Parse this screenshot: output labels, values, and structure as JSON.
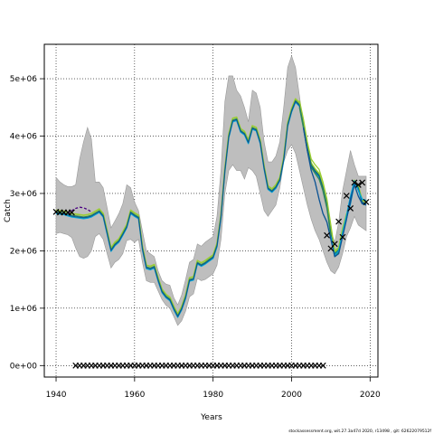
{
  "chart_data": {
    "type": "line",
    "xlabel": "Years",
    "ylabel": "Catch",
    "xlim": [
      1937,
      2022
    ],
    "ylim": [
      -200000,
      5600000
    ],
    "x_ticks": [
      1940,
      1960,
      1980,
      2000,
      2020
    ],
    "y_ticks": [
      0,
      1000000,
      2000000,
      3000000,
      4000000,
      5000000
    ],
    "y_tick_labels": [
      "0e+00",
      "1e+06",
      "2e+06",
      "3e+06",
      "4e+06",
      "5e+06"
    ],
    "grid": true,
    "grid_style": "dotted",
    "footer": "stockassessment.org, wit.27.3a47d   2020, r13498 , git: 62622079512f",
    "colors": {
      "band": "#bebebe",
      "band_edge": "#9a9a9a",
      "main": "#0b5394",
      "alt1": "#2e8b57",
      "alt2": "#9acd32",
      "alt3": "#00a6d6",
      "observed": "#000000",
      "retro_dashed": "#4b0082"
    },
    "years": [
      1940,
      1941,
      1942,
      1943,
      1944,
      1945,
      1946,
      1947,
      1948,
      1949,
      1950,
      1951,
      1952,
      1953,
      1954,
      1955,
      1956,
      1957,
      1958,
      1959,
      1960,
      1961,
      1962,
      1963,
      1964,
      1965,
      1966,
      1967,
      1968,
      1969,
      1970,
      1971,
      1972,
      1973,
      1974,
      1975,
      1976,
      1977,
      1978,
      1979,
      1980,
      1981,
      1982,
      1983,
      1984,
      1985,
      1986,
      1987,
      1988,
      1989,
      1990,
      1991,
      1992,
      1993,
      1994,
      1995,
      1996,
      1997,
      1998,
      1999,
      2000,
      2001,
      2002,
      2003,
      2004,
      2005,
      2006,
      2007,
      2008,
      2009,
      2010,
      2011,
      2012,
      2013,
      2014,
      2015,
      2016,
      2017,
      2018,
      2019
    ],
    "estimate": [
      2680000,
      2670000,
      2660000,
      2640000,
      2620000,
      2610000,
      2600000,
      2590000,
      2600000,
      2620000,
      2660000,
      2700000,
      2620000,
      2320000,
      2020000,
      2120000,
      2180000,
      2300000,
      2430000,
      2680000,
      2630000,
      2590000,
      2050000,
      1720000,
      1700000,
      1730000,
      1500000,
      1300000,
      1210000,
      1160000,
      1000000,
      870000,
      1000000,
      1200000,
      1500000,
      1520000,
      1800000,
      1760000,
      1800000,
      1850000,
      1900000,
      2100000,
      2600000,
      3400000,
      4000000,
      4280000,
      4300000,
      4100000,
      4050000,
      3900000,
      4150000,
      4120000,
      3900000,
      3450000,
      3100000,
      3050000,
      3120000,
      3250000,
      3600000,
      4200000,
      4450000,
      4620000,
      4550000,
      4200000,
      3800000,
      3500000,
      3400000,
      3320000,
      3100000,
      2800000,
      2300000,
      1950000,
      2020000,
      2350000,
      2600000,
      2850000,
      3200000,
      3100000,
      2850000,
      2830000
    ],
    "band_upper": [
      3280000,
      3200000,
      3150000,
      3120000,
      3120000,
      3150000,
      3600000,
      3900000,
      4150000,
      3950000,
      3200000,
      3200000,
      3100000,
      2750000,
      2400000,
      2520000,
      2650000,
      2820000,
      3150000,
      3100000,
      2850000,
      2700000,
      2350000,
      2000000,
      1950000,
      1900000,
      1650000,
      1480000,
      1420000,
      1400000,
      1180000,
      1060000,
      1230000,
      1500000,
      1800000,
      1850000,
      2120000,
      2080000,
      2150000,
      2200000,
      2250000,
      2600000,
      3400000,
      4600000,
      5050000,
      5050000,
      4800000,
      4700000,
      4500000,
      4250000,
      4800000,
      4750000,
      4500000,
      3900000,
      3550000,
      3550000,
      3650000,
      3900000,
      4500000,
      5200000,
      5400000,
      5200000,
      4700000,
      4200000,
      3800000,
      3500000,
      3400000,
      3300000,
      3000000,
      2700000,
      2350000,
      2150000,
      2500000,
      3050000,
      3400000,
      3750000,
      3500000,
      3300000,
      3300000,
      3300000
    ],
    "band_lower": [
      2300000,
      2320000,
      2300000,
      2280000,
      2230000,
      2050000,
      1900000,
      1870000,
      1900000,
      2000000,
      2250000,
      2300000,
      2200000,
      1950000,
      1700000,
      1800000,
      1850000,
      1950000,
      2180000,
      2200000,
      2150000,
      2200000,
      1800000,
      1480000,
      1450000,
      1450000,
      1300000,
      1150000,
      1050000,
      1000000,
      850000,
      700000,
      780000,
      950000,
      1200000,
      1250000,
      1520000,
      1480000,
      1500000,
      1550000,
      1600000,
      1750000,
      2200000,
      3000000,
      3400000,
      3500000,
      3400000,
      3400000,
      3250000,
      3450000,
      3400000,
      3300000,
      3000000,
      2700000,
      2600000,
      2700000,
      2800000,
      3100000,
      3550000,
      3750000,
      3850000,
      3700000,
      3400000,
      3100000,
      2800000,
      2550000,
      2350000,
      2200000,
      2000000,
      1800000,
      1650000,
      1600000,
      1720000,
      1950000,
      2250000,
      2400000,
      2600000,
      2450000,
      2400000,
      2350000
    ],
    "retro_lines": [
      {
        "color": "#2e8b57",
        "offset_start": 2002,
        "values": [
          4500000,
          4150000,
          3750000,
          3450000,
          3350000,
          3250000,
          3050000,
          2750000,
          2250000,
          1900000,
          1980000,
          2300000,
          2580000
        ]
      },
      {
        "color": "#9acd32",
        "offset_start": 2002,
        "values": [
          4620000,
          4300000,
          3900000,
          3600000,
          3500000,
          3420000,
          3200000,
          2900000,
          2450000,
          2000000,
          2060000,
          2380000,
          2650000
        ]
      },
      {
        "color": "#00a6d6",
        "offset_start": 2010,
        "values": [
          2250000,
          1920000,
          2000000,
          2320000,
          2620000,
          2950000,
          3220000,
          3050000,
          2900000,
          2880000
        ]
      },
      {
        "color": "#0b5394",
        "offset_start": 2003,
        "values": [
          4150000,
          3750000,
          3400000,
          3200000,
          2900000,
          2650000,
          2500000,
          2200000,
          1900000,
          1950000,
          2250000,
          2550000,
          2900000,
          3150000,
          2950000,
          2820000,
          2800000
        ]
      }
    ],
    "dashed_segment": {
      "color": "#4b0082",
      "years": [
        1943,
        1944,
        1945,
        1946,
        1947,
        1948,
        1949
      ],
      "values": [
        2650000,
        2700000,
        2740000,
        2760000,
        2750000,
        2720000,
        2680000
      ]
    },
    "observed_early": {
      "years": [
        1940,
        1941,
        1942,
        1943,
        1944
      ],
      "values": [
        2680000,
        2670000,
        2670000,
        2670000,
        2670000
      ]
    },
    "observed_late": {
      "years": [
        2009,
        2010,
        2011,
        2012,
        2013,
        2014,
        2015,
        2016,
        2017,
        2018,
        2019
      ],
      "values": [
        2270000,
        2040000,
        2120000,
        2510000,
        2240000,
        2960000,
        2740000,
        3190000,
        3150000,
        3190000,
        2850000
      ]
    },
    "zero_markers": {
      "start": 1945,
      "end": 2008,
      "value": 0
    }
  }
}
